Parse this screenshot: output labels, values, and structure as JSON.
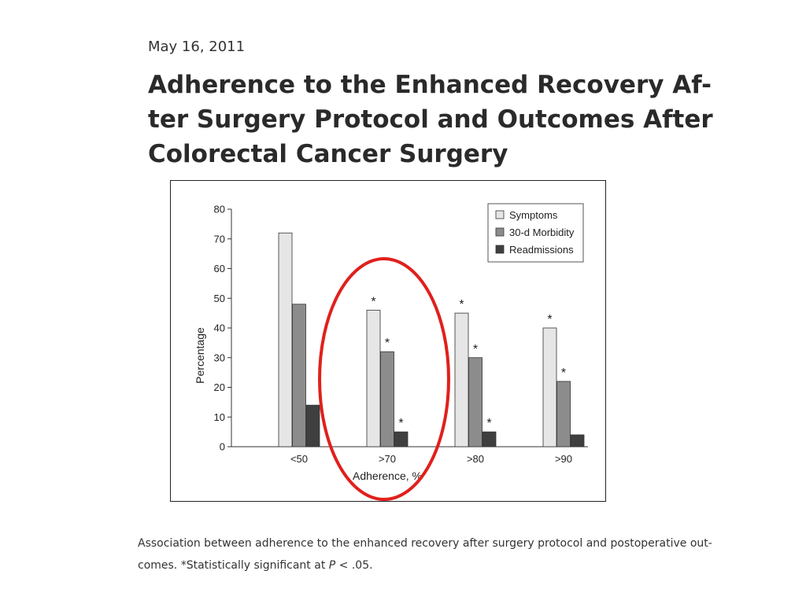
{
  "date": "May 16, 2011",
  "title_lines": [
    "Adherence to the Enhanced Recovery Af-",
    "ter Surgery Protocol and Outcomes After",
    "Colorectal Cancer Surgery"
  ],
  "caption": {
    "line1": "Association between adherence to the enhanced recovery after surgery protocol and postoperative out-",
    "line2_prefix": "comes. *Statistically significant at ",
    "line2_italic": "P",
    "line2_suffix": " < .05."
  },
  "chart_data": {
    "type": "bar",
    "categories": [
      "<50",
      ">70",
      ">80",
      ">90"
    ],
    "series": [
      {
        "name": "Symptoms",
        "color": "#e6e6e6",
        "values": [
          72,
          46,
          45,
          40
        ],
        "significant": [
          false,
          true,
          true,
          true
        ]
      },
      {
        "name": "30-d Morbidity",
        "color": "#8c8c8c",
        "values": [
          48,
          32,
          30,
          22
        ],
        "significant": [
          false,
          true,
          true,
          true
        ]
      },
      {
        "name": "Readmissions",
        "color": "#3f3f3f",
        "values": [
          14,
          5,
          5,
          4
        ],
        "significant": [
          false,
          true,
          true,
          false
        ]
      }
    ],
    "ylim": [
      0,
      80
    ],
    "yticks": [
      0,
      10,
      20,
      30,
      40,
      50,
      60,
      70,
      80
    ],
    "xlabel": "Adherence, %",
    "ylabel": "Percentage",
    "significance_marker": "*",
    "legend_position": "top-right",
    "grid": false,
    "annotation": {
      "shape": "ellipse",
      "color": "#e0201c",
      "highlights_category": ">70"
    }
  }
}
